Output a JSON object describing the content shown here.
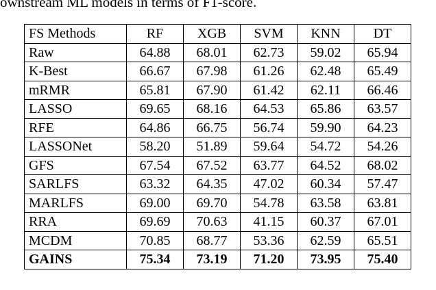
{
  "caption": "ownstream ML models in terms of F1-score.",
  "table": {
    "header": [
      "FS Methods",
      "RF",
      "XGB",
      "SVM",
      "KNN",
      "DT"
    ],
    "rows": [
      [
        "Raw",
        "64.88",
        "68.01",
        "62.73",
        "59.02",
        "65.94"
      ],
      [
        "K-Best",
        "66.67",
        "67.98",
        "61.26",
        "62.48",
        "65.49"
      ],
      [
        "mRMR",
        "65.81",
        "67.90",
        "61.42",
        "62.11",
        "66.46"
      ],
      [
        "LASSO",
        "69.65",
        "68.16",
        "64.53",
        "65.86",
        "63.57"
      ],
      [
        "RFE",
        "64.86",
        "66.75",
        "56.74",
        "59.90",
        "64.23"
      ],
      [
        "LASSONet",
        "58.20",
        "51.89",
        "59.64",
        "54.72",
        "54.26"
      ],
      [
        "GFS",
        "67.54",
        "67.52",
        "63.77",
        "64.52",
        "68.02"
      ],
      [
        "SARLFS",
        "63.32",
        "64.35",
        "47.02",
        "60.34",
        "57.47"
      ],
      [
        "MARLFS",
        "69.00",
        "69.70",
        "54.78",
        "63.58",
        "63.81"
      ],
      [
        "RRA",
        "69.69",
        "70.63",
        "41.15",
        "60.37",
        "67.01"
      ],
      [
        "MCDM",
        "70.85",
        "68.77",
        "53.36",
        "62.59",
        "65.51"
      ],
      [
        "GAINS",
        "75.34",
        "73.19",
        "71.20",
        "73.95",
        "75.40"
      ]
    ]
  }
}
